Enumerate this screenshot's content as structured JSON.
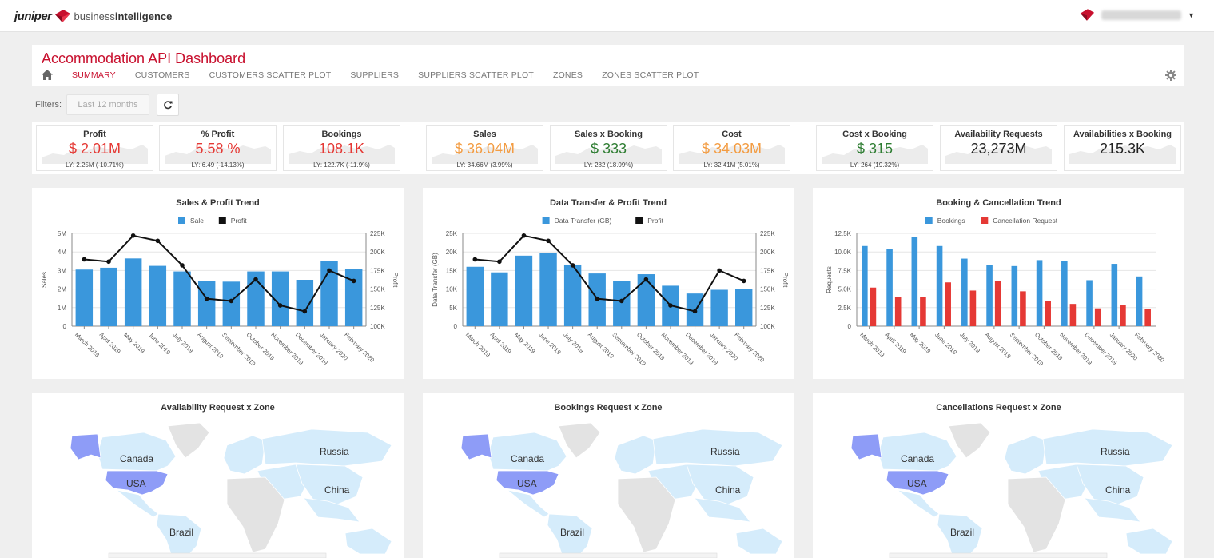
{
  "brand": {
    "name": "juniper",
    "suffix_light": "business",
    "suffix_bold": "intelligence"
  },
  "page_title": "Accommodation API Dashboard",
  "tabs": [
    "SUMMARY",
    "CUSTOMERS",
    "CUSTOMERS SCATTER PLOT",
    "SUPPLIERS",
    "SUPPLIERS SCATTER PLOT",
    "ZONES",
    "ZONES SCATTER PLOT"
  ],
  "active_tab": 0,
  "filters": {
    "label": "Filters:",
    "value": "Last 12 months"
  },
  "colors": {
    "brand_red": "#c8102e",
    "bar_blue": "#3a97dc",
    "bar_red": "#e53935",
    "value_red": "#e53935",
    "value_orange": "#f39c42",
    "value_green": "#2e7d32",
    "map_highlight": "#8e9cf7",
    "map_light": "#d5ecfb",
    "map_gray": "#e3e3e3"
  },
  "kpis": [
    {
      "title": "Profit",
      "value": "$ 2.01M",
      "ly": "LY: 2.25M (-10.71%)",
      "color": "#e53935"
    },
    {
      "title": "% Profit",
      "value": "5.58 %",
      "ly": "LY: 6.49 (-14.13%)",
      "color": "#e53935"
    },
    {
      "title": "Bookings",
      "value": "108.1K",
      "ly": "LY: 122.7K (-11.9%)",
      "color": "#e53935"
    },
    {
      "title": "Sales",
      "value": "$ 36.04M",
      "ly": "LY: 34.66M (3.99%)",
      "color": "#f39c42"
    },
    {
      "title": "Sales x Booking",
      "value": "$ 333",
      "ly": "LY: 282 (18.09%)",
      "color": "#2e7d32"
    },
    {
      "title": "Cost",
      "value": "$ 34.03M",
      "ly": "LY: 32.41M (5.01%)",
      "color": "#f39c42"
    },
    {
      "title": "Cost x Booking",
      "value": "$ 315",
      "ly": "LY: 264 (19.32%)",
      "color": "#2e7d32"
    },
    {
      "title": "Availability Requests",
      "value": "23,273M",
      "ly": "",
      "color": "#222222"
    },
    {
      "title": "Availabilities x Booking",
      "value": "215.3K",
      "ly": "",
      "color": "#222222"
    }
  ],
  "chart_data": [
    {
      "type": "bar",
      "title": "Sales & Profit Trend",
      "categories": [
        "March 2019",
        "April 2019",
        "May 2019",
        "June 2019",
        "July 2019",
        "August 2019",
        "September 2019",
        "October 2019",
        "November 2019",
        "December 2019",
        "January 2020",
        "February 2020"
      ],
      "series": [
        {
          "name": "Sale",
          "type": "bar",
          "axis": "left",
          "values": [
            3050000,
            3150000,
            3650000,
            3250000,
            2950000,
            2450000,
            2400000,
            2950000,
            2950000,
            2500000,
            3500000,
            3100000
          ]
        },
        {
          "name": "Profit",
          "type": "line",
          "axis": "right",
          "values": [
            190000,
            187000,
            222000,
            215000,
            182000,
            137000,
            134000,
            163000,
            128000,
            120000,
            175000,
            161000
          ]
        }
      ],
      "ylabel": "Sales",
      "y2label": "Profit",
      "ylim": [
        0,
        5000000
      ],
      "y2lim": [
        100000,
        225000
      ],
      "yticks": [
        "0",
        "1M",
        "2M",
        "3M",
        "4M",
        "5M"
      ],
      "y2ticks": [
        "100K",
        "125K",
        "150K",
        "175K",
        "200K",
        "225K"
      ],
      "legend": "top-center"
    },
    {
      "type": "bar",
      "title": "Data Transfer & Profit Trend",
      "categories": [
        "March 2019",
        "April 2019",
        "May 2019",
        "June 2019",
        "July 2019",
        "August 2019",
        "September 2019",
        "October 2019",
        "November 2019",
        "December 2019",
        "January 2020",
        "February 2020"
      ],
      "series": [
        {
          "name": "Data Transfer (GB)",
          "type": "bar",
          "axis": "left",
          "values": [
            16000,
            14500,
            19000,
            19700,
            16600,
            14200,
            12100,
            14000,
            10900,
            8800,
            9800,
            10000
          ]
        },
        {
          "name": "Profit",
          "type": "line",
          "axis": "right",
          "values": [
            190000,
            187000,
            222000,
            215000,
            182000,
            137000,
            134000,
            163000,
            128000,
            120000,
            175000,
            161000
          ]
        }
      ],
      "ylabel": "Data Transfer (GB)",
      "y2label": "Profit",
      "ylim": [
        0,
        25000
      ],
      "y2lim": [
        100000,
        225000
      ],
      "yticks": [
        "0",
        "5K",
        "10K",
        "15K",
        "20K",
        "25K"
      ],
      "y2ticks": [
        "100K",
        "125K",
        "150K",
        "175K",
        "200K",
        "225K"
      ],
      "legend": "top-center"
    },
    {
      "type": "bar",
      "title": "Booking & Cancellation Trend",
      "categories": [
        "March 2019",
        "April 2019",
        "May 2019",
        "June 2019",
        "July 2019",
        "August 2019",
        "September 2019",
        "October 2019",
        "November 2019",
        "December 2019",
        "January 2020",
        "February 2020"
      ],
      "series": [
        {
          "name": "Bookings",
          "type": "bar",
          "axis": "left",
          "values": [
            10800,
            10400,
            12000,
            10800,
            9100,
            8200,
            8100,
            8900,
            8800,
            6200,
            8400,
            6700
          ]
        },
        {
          "name": "Cancellation Request",
          "type": "bar",
          "axis": "left",
          "values": [
            5200,
            3900,
            3900,
            5900,
            4800,
            6100,
            4700,
            3400,
            3000,
            2400,
            2800,
            2300
          ]
        }
      ],
      "ylabel": "Requests",
      "ylim": [
        0,
        12500
      ],
      "yticks": [
        "0",
        "2.5K",
        "5.0K",
        "7.5K",
        "10.0K",
        "12.5K"
      ],
      "legend": "top-center"
    }
  ],
  "maps": [
    {
      "title": "Availability Request x Zone",
      "labels": {
        "canada": "Canada",
        "usa": "USA",
        "russia": "Russia",
        "china": "China",
        "brazil": "Brazil"
      }
    },
    {
      "title": "Bookings Request x Zone",
      "labels": {
        "canada": "Canada",
        "usa": "USA",
        "russia": "Russia",
        "china": "China",
        "brazil": "Brazil"
      }
    },
    {
      "title": "Cancellations Request x Zone",
      "labels": {
        "canada": "Canada",
        "usa": "USA",
        "russia": "Russia",
        "china": "China",
        "brazil": "Brazil"
      }
    }
  ]
}
